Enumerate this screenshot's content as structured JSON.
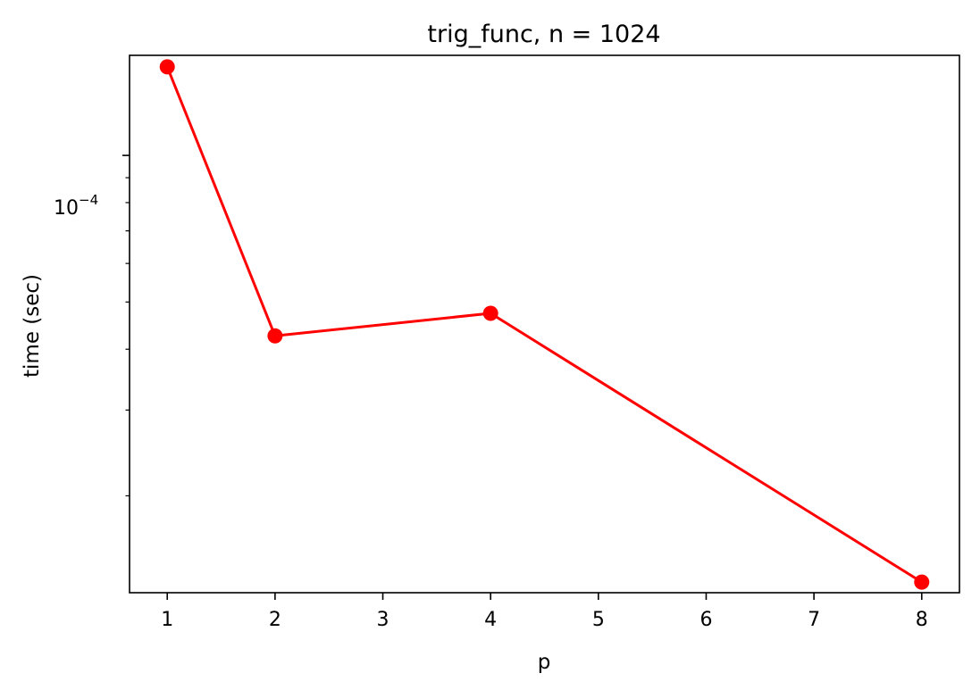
{
  "chart_data": {
    "type": "line",
    "title": "trig_func, n = 1024",
    "xlabel": "p",
    "ylabel": "time (sec)",
    "x_ticks": [
      1,
      2,
      3,
      4,
      5,
      6,
      7,
      8
    ],
    "y_tick_label": {
      "base": "10",
      "exponent": "−4"
    },
    "y_scale": "log",
    "ylim": [
      1.265e-05,
      0.0001605
    ],
    "xlim": [
      0.65,
      8.35
    ],
    "grid": false,
    "series": [
      {
        "x": [
          1,
          2,
          4,
          8
        ],
        "y": [
          0.000152,
          4.26e-05,
          4.74e-05,
          1.33e-05
        ],
        "color": "#ff0000",
        "marker": "circle"
      }
    ]
  }
}
